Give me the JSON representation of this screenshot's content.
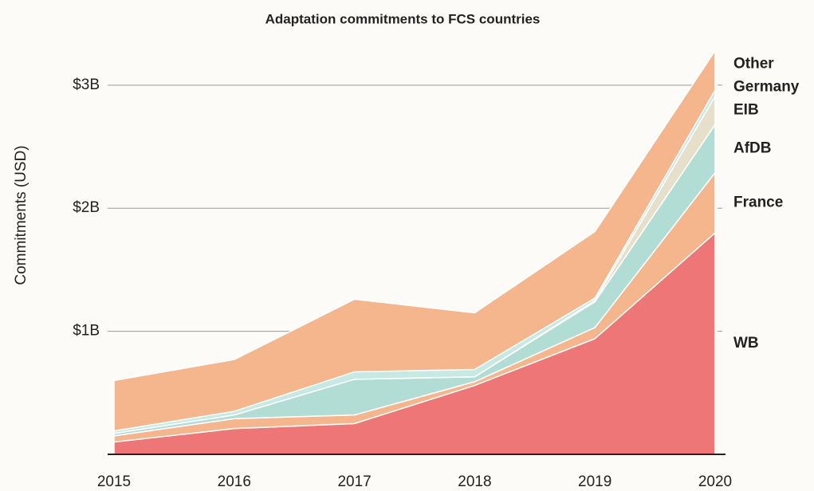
{
  "chart_data": {
    "type": "stacked_area",
    "title": "Adaptation commitments to FCS countries",
    "y_label": "Commitments (USD)",
    "x": [
      2015,
      2016,
      2017,
      2018,
      2019,
      2020
    ],
    "xlim": [
      2015,
      2020
    ],
    "xticks": [
      2015,
      2016,
      2017,
      2018,
      2019,
      2020
    ],
    "ylim": [
      0,
      3.3
    ],
    "yticks": [
      {
        "value": 1,
        "label": "$1B"
      },
      {
        "value": 2,
        "label": "$2B"
      },
      {
        "value": 3,
        "label": "$3B"
      }
    ],
    "grid": true,
    "series": [
      {
        "name": "WB",
        "color": "#ef7676",
        "values": [
          0.1,
          0.21,
          0.25,
          0.56,
          0.94,
          1.8
        ]
      },
      {
        "name": "France",
        "color": "#f5b58d",
        "values": [
          0.05,
          0.08,
          0.07,
          0.03,
          0.09,
          0.49
        ]
      },
      {
        "name": "AfDB",
        "color": "#b1ddd4",
        "values": [
          0.02,
          0.03,
          0.29,
          0.04,
          0.21,
          0.39
        ]
      },
      {
        "name": "EIB",
        "color": "#e6dfc9",
        "values": [
          0,
          0,
          0,
          0,
          0.01,
          0.23
        ]
      },
      {
        "name": "Germany",
        "color": "#c6e9e3",
        "values": [
          0.02,
          0.03,
          0.06,
          0.06,
          0.02,
          0.05
        ]
      },
      {
        "name": "Other",
        "color": "#f5b58d",
        "values": [
          0.41,
          0.42,
          0.59,
          0.46,
          0.54,
          0.32
        ]
      }
    ]
  }
}
